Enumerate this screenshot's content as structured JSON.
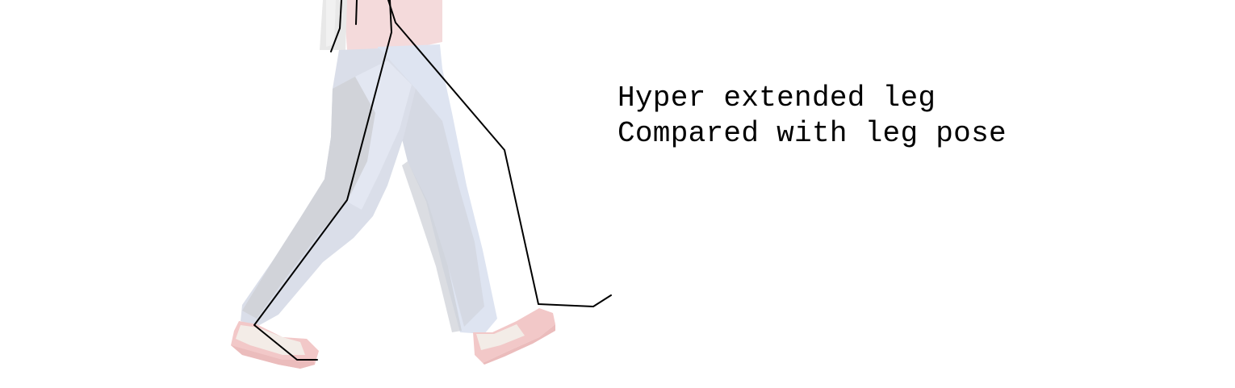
{
  "annotation": {
    "line_1": "Hyper extended leg",
    "line_2": "Compared with leg pose"
  },
  "colors": {
    "background": "#ffffff",
    "pants_light": "#dde3f1",
    "pants_shadow": "#cfd1d8",
    "shirt": "#f4d9da",
    "shoe": "#f2c6c6",
    "shoe_sole": "#f0eae4",
    "skeleton_line": "#000000"
  }
}
